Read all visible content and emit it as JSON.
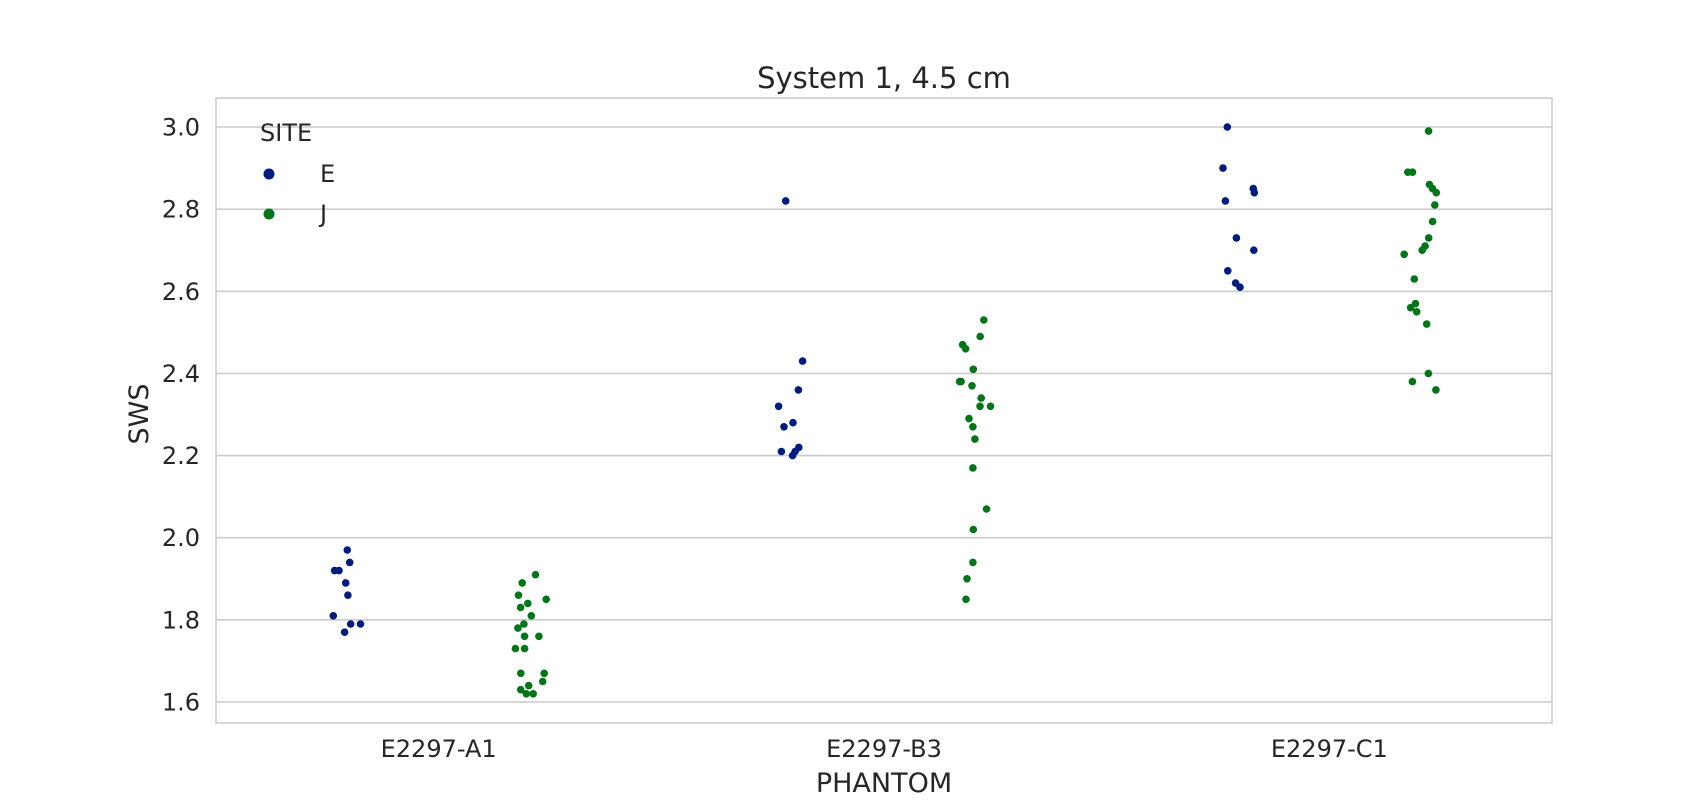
{
  "chart_data": {
    "type": "scatter",
    "title": "System 1, 4.5 cm",
    "xlabel": "PHANTOM",
    "ylabel": "SWS",
    "categories": [
      "E2297-A1",
      "E2297-B3",
      "E2297-C1"
    ],
    "ylim": [
      1.55,
      3.07
    ],
    "yticks": [
      1.6,
      1.8,
      2.0,
      2.2,
      2.4,
      2.6,
      2.8,
      3.0
    ],
    "ytick_labels": [
      "1.6",
      "1.8",
      "2.0",
      "2.2",
      "2.4",
      "2.6",
      "2.8",
      "3.0"
    ],
    "grid": "horizontal",
    "legend": {
      "title": "SITE",
      "position": "top-left"
    },
    "series": [
      {
        "name": "E",
        "color": "#001c7f",
        "values": [
          [
            1.97,
            1.94,
            1.92,
            1.92,
            1.89,
            1.86,
            1.81,
            1.79,
            1.79,
            1.77
          ],
          [
            2.82,
            2.43,
            2.36,
            2.32,
            2.28,
            2.27,
            2.22,
            2.21,
            2.21,
            2.2
          ],
          [
            3.0,
            2.9,
            2.85,
            2.84,
            2.82,
            2.73,
            2.7,
            2.65,
            2.62,
            2.61
          ]
        ]
      },
      {
        "name": "J",
        "color": "#017517",
        "values": [
          [
            1.91,
            1.89,
            1.86,
            1.85,
            1.84,
            1.83,
            1.81,
            1.79,
            1.78,
            1.76,
            1.76,
            1.73,
            1.73,
            1.67,
            1.67,
            1.65,
            1.64,
            1.63,
            1.62,
            1.62
          ],
          [
            2.53,
            2.49,
            2.47,
            2.46,
            2.41,
            2.38,
            2.38,
            2.37,
            2.34,
            2.32,
            2.32,
            2.29,
            2.27,
            2.24,
            2.17,
            2.07,
            2.02,
            1.94,
            1.9,
            1.85
          ],
          [
            2.99,
            2.89,
            2.89,
            2.86,
            2.85,
            2.84,
            2.81,
            2.77,
            2.73,
            2.71,
            2.7,
            2.69,
            2.63,
            2.57,
            2.56,
            2.55,
            2.52,
            2.4,
            2.38,
            2.36
          ]
        ]
      }
    ]
  }
}
